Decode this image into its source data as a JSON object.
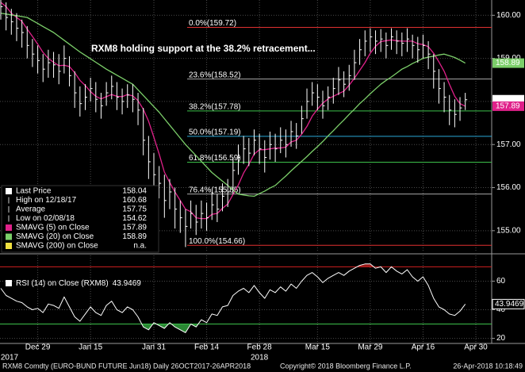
{
  "chart_data": {
    "type": "ohlc",
    "annotation": "RXM8 holding support at the 38.2% retracement...",
    "categories": [
      null,
      null,
      null,
      null,
      null,
      null,
      null,
      "Dec 29",
      null,
      null,
      null,
      null,
      null,
      null,
      null,
      null,
      null,
      "Jan 15",
      null,
      null,
      null,
      null,
      null,
      null,
      null,
      null,
      null,
      null,
      null,
      "Jan 31",
      null,
      null,
      null,
      null,
      null,
      null,
      null,
      null,
      null,
      "Feb 14",
      null,
      null,
      null,
      null,
      null,
      null,
      null,
      null,
      null,
      "Feb 28",
      null,
      null,
      null,
      null,
      null,
      null,
      null,
      null,
      null,
      null,
      "Mar 15",
      null,
      null,
      null,
      null,
      null,
      null,
      null,
      null,
      null,
      "Mar 29",
      null,
      null,
      null,
      null,
      null,
      null,
      null,
      null,
      null,
      "Apr 16",
      null,
      null,
      null,
      null,
      null,
      null,
      null,
      null,
      null,
      "Apr 30"
    ],
    "years": [
      "2017",
      null,
      null,
      null,
      null,
      null,
      null,
      null,
      null,
      null,
      null,
      null,
      null,
      null,
      null,
      null,
      null,
      null,
      null,
      null,
      null,
      null,
      null,
      null,
      null,
      null,
      null,
      null,
      null,
      null,
      null,
      null,
      null,
      null,
      null,
      null,
      null,
      null,
      null,
      null,
      null,
      null,
      null,
      null,
      null,
      null,
      null,
      null,
      null,
      "2018",
      null,
      null,
      null,
      null,
      null,
      null,
      null,
      null,
      null,
      null,
      null,
      null,
      null,
      null,
      null,
      null,
      null,
      null,
      null,
      null,
      null,
      null,
      null,
      null,
      null,
      null,
      null,
      null,
      null,
      null,
      null,
      null,
      null,
      null,
      null,
      null,
      null,
      null,
      null,
      null,
      null
    ],
    "ylim": [
      154.5,
      160.3
    ],
    "yticks": [
      {
        "value": 155,
        "label": "155.00"
      },
      {
        "value": 156,
        "label": "156.00"
      },
      {
        "value": 157,
        "label": "157.00"
      },
      {
        "value": 158,
        "label": "158.00"
      },
      {
        "value": 159,
        "label": "159.00"
      },
      {
        "value": 160,
        "label": "160.00"
      }
    ],
    "grid": true,
    "bars": {
      "color": "#ffffff",
      "high": [
        160.68,
        160.3,
        160.15,
        160.05,
        159.9,
        159.75,
        159.45,
        159.3,
        159.1,
        159.2,
        159.15,
        159.1,
        159.3,
        159.05,
        158.7,
        158.35,
        158.4,
        158.55,
        158.45,
        158.2,
        158.45,
        158.6,
        158.45,
        158.3,
        158.4,
        158.4,
        158.2,
        157.85,
        157.2,
        156.8,
        156.5,
        156.3,
        156.2,
        156.0,
        155.7,
        155.5,
        155.7,
        155.6,
        155.7,
        155.65,
        155.9,
        155.85,
        156.1,
        156.2,
        156.7,
        157.0,
        157.2,
        157.15,
        157.35,
        157.25,
        157.1,
        157.3,
        157.25,
        157.4,
        157.35,
        157.55,
        157.5,
        157.9,
        158.3,
        158.45,
        158.4,
        158.25,
        158.35,
        158.55,
        158.8,
        158.7,
        158.85,
        159.2,
        159.45,
        159.65,
        159.7,
        159.65,
        159.68,
        159.6,
        159.7,
        159.65,
        159.6,
        159.7,
        159.55,
        159.5,
        159.55,
        159.4,
        159.1,
        158.75,
        158.45,
        158.15,
        158.05,
        158.1,
        158.2,
        null,
        null
      ],
      "low": [
        159.9,
        159.65,
        159.55,
        159.4,
        159.25,
        159.0,
        158.8,
        158.65,
        158.45,
        158.55,
        158.55,
        158.4,
        158.65,
        158.35,
        157.85,
        157.65,
        157.8,
        158.0,
        157.75,
        157.6,
        157.9,
        158.05,
        157.8,
        157.7,
        157.85,
        157.75,
        157.45,
        156.75,
        156.2,
        155.95,
        155.75,
        155.3,
        155.5,
        155.05,
        154.95,
        154.62,
        155.05,
        154.9,
        155.05,
        155.0,
        155.25,
        155.2,
        155.45,
        155.55,
        155.85,
        156.3,
        156.55,
        156.5,
        156.75,
        156.55,
        156.35,
        156.65,
        156.6,
        156.8,
        156.7,
        156.95,
        156.9,
        157.25,
        157.6,
        157.9,
        157.8,
        157.6,
        157.8,
        157.95,
        158.15,
        158.1,
        158.25,
        158.5,
        158.85,
        159.05,
        159.15,
        159.1,
        159.15,
        159.0,
        159.2,
        159.1,
        159.05,
        159.15,
        159.0,
        158.9,
        159.0,
        158.75,
        158.3,
        157.95,
        157.75,
        157.45,
        157.4,
        157.55,
        157.8,
        null,
        null
      ],
      "values": [
        160.2,
        159.95,
        159.85,
        159.7,
        159.6,
        159.3,
        159.1,
        158.95,
        158.75,
        158.9,
        158.85,
        158.7,
        159.0,
        158.6,
        158.2,
        157.95,
        158.1,
        158.3,
        158.05,
        157.9,
        158.2,
        158.35,
        158.1,
        158.0,
        158.15,
        158.05,
        157.8,
        157.1,
        156.6,
        156.3,
        156.1,
        155.7,
        155.9,
        155.5,
        155.3,
        155.1,
        155.4,
        155.2,
        155.4,
        155.3,
        155.6,
        155.5,
        155.8,
        155.9,
        156.4,
        156.7,
        156.9,
        156.8,
        157.1,
        156.9,
        156.7,
        157.0,
        156.9,
        157.1,
        157.0,
        157.3,
        157.2,
        157.6,
        158.0,
        158.2,
        158.1,
        157.9,
        158.1,
        158.3,
        158.5,
        158.4,
        158.6,
        158.9,
        159.2,
        159.4,
        159.5,
        159.4,
        159.45,
        159.3,
        159.5,
        159.4,
        159.35,
        159.45,
        159.3,
        159.2,
        159.3,
        159.1,
        158.7,
        158.3,
        158.1,
        157.8,
        157.7,
        157.85,
        158.04,
        null,
        null
      ]
    },
    "series": [
      {
        "color": "#e0218a",
        "values": [
          160.3,
          160.2,
          160.05,
          159.95,
          159.86,
          159.68,
          159.51,
          159.33,
          159.14,
          159.0,
          158.91,
          158.83,
          158.84,
          158.81,
          158.67,
          158.49,
          158.37,
          158.23,
          158.12,
          158.06,
          158.11,
          158.16,
          158.12,
          158.11,
          158.16,
          158.13,
          158.02,
          157.82,
          157.54,
          157.17,
          156.78,
          156.36,
          156.12,
          155.9,
          155.7,
          155.5,
          155.44,
          155.3,
          155.28,
          155.28,
          155.38,
          155.4,
          155.52,
          155.62,
          155.84,
          156.06,
          156.34,
          156.54,
          156.78,
          156.88,
          156.88,
          156.9,
          156.92,
          156.92,
          156.94,
          157.06,
          157.1,
          157.24,
          157.42,
          157.66,
          157.82,
          157.96,
          158.06,
          158.12,
          158.18,
          158.24,
          158.38,
          158.54,
          158.72,
          158.9,
          159.12,
          159.28,
          159.39,
          159.41,
          159.43,
          159.41,
          159.4,
          159.4,
          159.4,
          159.34,
          159.32,
          159.27,
          159.12,
          158.92,
          158.7,
          158.4,
          158.12,
          157.95,
          157.89,
          null,
          null
        ]
      },
      {
        "color": "#7ccf6a",
        "values": [
          160.05,
          160.03,
          160.01,
          159.99,
          159.97,
          159.95,
          159.88,
          159.81,
          159.74,
          159.67,
          159.6,
          159.51,
          159.42,
          159.33,
          159.24,
          159.15,
          159.07,
          158.99,
          158.91,
          158.83,
          158.75,
          158.68,
          158.61,
          158.54,
          158.47,
          158.4,
          158.27,
          158.14,
          158.01,
          157.88,
          157.75,
          157.6,
          157.45,
          157.3,
          157.15,
          157.0,
          156.87,
          156.74,
          156.61,
          156.48,
          156.35,
          156.25,
          156.15,
          156.05,
          155.95,
          155.85,
          155.83,
          155.81,
          155.8,
          155.86,
          155.92,
          155.99,
          156.05,
          156.16,
          156.27,
          156.39,
          156.5,
          156.61,
          156.72,
          156.84,
          156.95,
          157.07,
          157.2,
          157.32,
          157.45,
          157.57,
          157.7,
          157.82,
          157.95,
          158.06,
          158.18,
          158.29,
          158.4,
          158.49,
          158.57,
          158.66,
          158.75,
          158.81,
          158.88,
          158.94,
          159.0,
          159.03,
          159.05,
          159.08,
          159.1,
          159.06,
          159.02,
          158.96,
          158.89,
          null,
          null
        ]
      }
    ],
    "legend": [
      {
        "label": "Last Price",
        "value": 158.04,
        "color": "#ffffff"
      },
      {
        "label": "High on 12/18/17",
        "value": 160.68
      },
      {
        "label": "Average",
        "value": 157.75
      },
      {
        "label": "Low on 02/08/18",
        "value": 154.62
      },
      {
        "label": "SMAVG (5) on Close",
        "value": 157.89,
        "color": "#e0218a"
      },
      {
        "label": "SMAVG (20) on Close",
        "value": 158.89,
        "color": "#7ccf6a"
      },
      {
        "label": "SMAVG (200) on Close",
        "value": "n.a.",
        "color": "#f0e040"
      }
    ],
    "fib_levels": [
      {
        "label": "0.0%(159.72)",
        "value": 159.72,
        "color": "#e03030"
      },
      {
        "label": "23.6%(158.52)",
        "value": 158.52,
        "color": "#a8a8a8"
      },
      {
        "label": "38.2%(157.78)",
        "value": 157.78,
        "color": "#3cc04a"
      },
      {
        "label": "50.0%(157.19)",
        "value": 157.19,
        "color": "#2aa8d8"
      },
      {
        "label": "61.8%(156.59)",
        "value": 156.59,
        "color": "#3cc04a"
      },
      {
        "label": "76.4%(155.85)",
        "value": 155.85,
        "color": "#a8a8a8"
      },
      {
        "label": "100.0%(154.66)",
        "value": 154.66,
        "color": "#e03030"
      }
    ],
    "rsi": {
      "type": "line",
      "label": "RSI (14) on Close (RXM8)",
      "color": "#ffffff",
      "ylim": [
        17,
        78
      ],
      "yticks": [
        20,
        40,
        60
      ],
      "levels": [
        {
          "value": 70,
          "color": "#d02020"
        },
        {
          "value": 30,
          "color": "#3cc04a"
        }
      ],
      "values": [
        55,
        50,
        48,
        46,
        45,
        42,
        40,
        41,
        38,
        44,
        43,
        41,
        49,
        42,
        35,
        32,
        37,
        42,
        38,
        36,
        43,
        46,
        40,
        38,
        42,
        40,
        35,
        28,
        26,
        31,
        29,
        27,
        31,
        28,
        26,
        24,
        30,
        28,
        33,
        31,
        37,
        36,
        42,
        43,
        50,
        53,
        55,
        52,
        57,
        52,
        48,
        54,
        52,
        56,
        53,
        58,
        55,
        60,
        64,
        66,
        63,
        59,
        62,
        64,
        66,
        64,
        67,
        69,
        71,
        72,
        72,
        69,
        70,
        66,
        70,
        67,
        65,
        68,
        63,
        60,
        63,
        57,
        48,
        42,
        40,
        37,
        36,
        39,
        43.9469,
        null,
        null
      ]
    },
    "footer": {
      "left": "RXM8 Comdty (EURO-BUND FUTURE  Jun18)  Daily 26OCT2017-26APR2018",
      "center": "Copyright© 2018 Bloomberg Finance L.P.",
      "right": "26-Apr-2018 10:18:49"
    }
  }
}
